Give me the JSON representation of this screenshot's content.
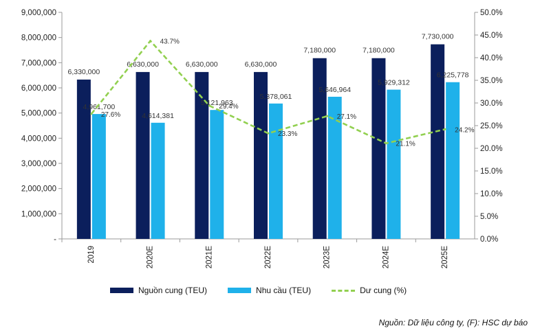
{
  "colors": {
    "supply": "#0b1f5c",
    "demand": "#1fb1ea",
    "surplus": "#92d050",
    "axis": "#9a9a9a"
  },
  "chart_data": {
    "type": "bar",
    "categories": [
      "2019",
      "2020E",
      "2021E",
      "2022E",
      "2023E",
      "2024E",
      "2025E"
    ],
    "series": [
      {
        "name": "Nguồn cung (TEU)",
        "kind": "bar",
        "axis": "left",
        "values": [
          6330000,
          6630000,
          6630000,
          6630000,
          7180000,
          7180000,
          7730000
        ],
        "labels": [
          "6,330,000",
          "6,630,000",
          "6,630,000",
          "6,630,000",
          "7,180,000",
          "7,180,000",
          "7,730,000"
        ]
      },
      {
        "name": "Nhu cầu (TEU)",
        "kind": "bar",
        "axis": "left",
        "values": [
          4961700,
          4614381,
          5121963,
          5378061,
          5646964,
          5929312,
          6225778
        ],
        "labels": [
          "4,961,700",
          "4,614,381",
          "5,121,963",
          "5,378,061",
          "5,646,964",
          "5,929,312",
          "6,225,778"
        ]
      },
      {
        "name": "Dư cung (%)",
        "kind": "line",
        "axis": "right",
        "style": "dashed",
        "values": [
          27.6,
          43.7,
          29.4,
          23.3,
          27.1,
          21.1,
          24.2
        ],
        "labels": [
          "27.6%",
          "43.7%",
          "29.4%",
          "23.3%",
          "27.1%",
          "21.1%",
          "24.2%"
        ]
      }
    ],
    "y_left": {
      "min": 0,
      "max": 9000000,
      "step": 1000000,
      "ticks": [
        "-",
        "1,000,000",
        "2,000,000",
        "3,000,000",
        "4,000,000",
        "5,000,000",
        "6,000,000",
        "7,000,000",
        "8,000,000",
        "9,000,000"
      ]
    },
    "y_right": {
      "min": 0,
      "max": 50,
      "step": 5,
      "ticks": [
        "0.0%",
        "5.0%",
        "10.0%",
        "15.0%",
        "20.0%",
        "25.0%",
        "30.0%",
        "35.0%",
        "40.0%",
        "45.0%",
        "50.0%"
      ]
    },
    "grid": false,
    "legend": "bottom",
    "source": "Nguồn: Dữ liệu công ty, (F): HSC dự báo"
  }
}
